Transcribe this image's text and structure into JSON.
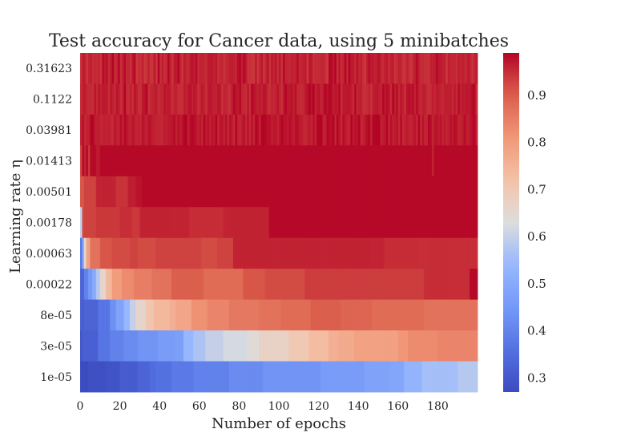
{
  "chart_data": {
    "type": "heatmap",
    "title": "Test accuracy for Cancer data, using 5 minibatches",
    "xlabel": "Number of epochs",
    "ylabel": "Learning rate η",
    "x_ticks": [
      "0",
      "20",
      "40",
      "60",
      "80",
      "100",
      "120",
      "140",
      "160",
      "180"
    ],
    "y_ticks": [
      "0.31623",
      "0.1122",
      "0.03981",
      "0.01413",
      "0.00501",
      "0.00178",
      "0.00063",
      "0.00022",
      "8e-05",
      "3e-05",
      "1e-05"
    ],
    "n_epochs": 200,
    "colormap": "coolwarm",
    "colorbar": {
      "ticks": [
        "0.3",
        "0.4",
        "0.5",
        "0.6",
        "0.7",
        "0.8",
        "0.9"
      ],
      "vmin": 0.27,
      "vmax": 0.99,
      "low_color": "#3b4cc0",
      "mid_color": "#dddddd",
      "high_color": "#b40426"
    },
    "rows": [
      {
        "learning_rate": "0.31623",
        "pattern": "noisy",
        "base": 0.955,
        "spread": 0.035,
        "seed": 11
      },
      {
        "learning_rate": "0.1122",
        "pattern": "noisy",
        "base": 0.962,
        "spread": 0.03,
        "seed": 23
      },
      {
        "learning_rate": "0.03981",
        "pattern": "noisy",
        "base": 0.968,
        "spread": 0.028,
        "seed": 37
      },
      {
        "learning_rate": "0.01413",
        "segments": [
          [
            0,
            0.93
          ],
          [
            1,
            0.985
          ],
          [
            2,
            0.96
          ],
          [
            3,
            0.985
          ],
          [
            4,
            0.94
          ],
          [
            5,
            0.985
          ],
          [
            8,
            0.97
          ],
          [
            10,
            0.985
          ],
          [
            177,
            0.96
          ],
          [
            178,
            0.985
          ]
        ]
      },
      {
        "learning_rate": "0.00501",
        "segments": [
          [
            0,
            0.91
          ],
          [
            2,
            0.93
          ],
          [
            8,
            0.96
          ],
          [
            18,
            0.945
          ],
          [
            24,
            0.965
          ],
          [
            28,
            0.975
          ],
          [
            31,
            0.985
          ]
        ]
      },
      {
        "learning_rate": "0.00178",
        "segments": [
          [
            0,
            0.6
          ],
          [
            1,
            0.92
          ],
          [
            2,
            0.93
          ],
          [
            8,
            0.94
          ],
          [
            20,
            0.95
          ],
          [
            26,
            0.94
          ],
          [
            30,
            0.96
          ],
          [
            55,
            0.95
          ],
          [
            72,
            0.96
          ],
          [
            95,
            0.985
          ]
        ]
      },
      {
        "learning_rate": "0.00063",
        "segments": [
          [
            0,
            0.38
          ],
          [
            1,
            0.5
          ],
          [
            2,
            0.65
          ],
          [
            3,
            0.79
          ],
          [
            5,
            0.87
          ],
          [
            10,
            0.91
          ],
          [
            16,
            0.92
          ],
          [
            25,
            0.93
          ],
          [
            29,
            0.92
          ],
          [
            38,
            0.93
          ],
          [
            61,
            0.92
          ],
          [
            69,
            0.93
          ],
          [
            77,
            0.96
          ],
          [
            153,
            0.95
          ]
        ]
      },
      {
        "learning_rate": "0.00022",
        "segments": [
          [
            0,
            0.33
          ],
          [
            2,
            0.4
          ],
          [
            4,
            0.45
          ],
          [
            6,
            0.5
          ],
          [
            8,
            0.58
          ],
          [
            10,
            0.66
          ],
          [
            13,
            0.74
          ],
          [
            16,
            0.8
          ],
          [
            21,
            0.83
          ],
          [
            27,
            0.85
          ],
          [
            36,
            0.87
          ],
          [
            46,
            0.9
          ],
          [
            62,
            0.88
          ],
          [
            82,
            0.91
          ],
          [
            93,
            0.92
          ],
          [
            113,
            0.935
          ],
          [
            173,
            0.95
          ],
          [
            196,
            0.985
          ]
        ]
      },
      {
        "learning_rate": "8e-05",
        "segments": [
          [
            0,
            0.32
          ],
          [
            2,
            0.33
          ],
          [
            9,
            0.37
          ],
          [
            15,
            0.43
          ],
          [
            18,
            0.48
          ],
          [
            22,
            0.54
          ],
          [
            25,
            0.6
          ],
          [
            28,
            0.66
          ],
          [
            33,
            0.71
          ],
          [
            37,
            0.74
          ],
          [
            45,
            0.76
          ],
          [
            48,
            0.78
          ],
          [
            56,
            0.82
          ],
          [
            64,
            0.84
          ],
          [
            75,
            0.86
          ],
          [
            90,
            0.87
          ],
          [
            101,
            0.88
          ],
          [
            116,
            0.9
          ],
          [
            131,
            0.89
          ],
          [
            147,
            0.88
          ],
          [
            173,
            0.87
          ]
        ]
      },
      {
        "learning_rate": "3e-05",
        "segments": [
          [
            0,
            0.29
          ],
          [
            1,
            0.32
          ],
          [
            9,
            0.37
          ],
          [
            15,
            0.4
          ],
          [
            22,
            0.42
          ],
          [
            29,
            0.44
          ],
          [
            39,
            0.46
          ],
          [
            48,
            0.47
          ],
          [
            52,
            0.54
          ],
          [
            57,
            0.57
          ],
          [
            63,
            0.6
          ],
          [
            72,
            0.62
          ],
          [
            84,
            0.64
          ],
          [
            90,
            0.67
          ],
          [
            105,
            0.7
          ],
          [
            115,
            0.73
          ],
          [
            125,
            0.76
          ],
          [
            130,
            0.77
          ],
          [
            138,
            0.79
          ],
          [
            160,
            0.81
          ],
          [
            165,
            0.83
          ],
          [
            180,
            0.84
          ]
        ]
      },
      {
        "learning_rate": "1e-05",
        "segments": [
          [
            0,
            0.27
          ],
          [
            4,
            0.28
          ],
          [
            13,
            0.29
          ],
          [
            20,
            0.31
          ],
          [
            29,
            0.33
          ],
          [
            35,
            0.35
          ],
          [
            38,
            0.36
          ],
          [
            46,
            0.38
          ],
          [
            57,
            0.4
          ],
          [
            75,
            0.42
          ],
          [
            92,
            0.44
          ],
          [
            121,
            0.46
          ],
          [
            143,
            0.48
          ],
          [
            156,
            0.49
          ],
          [
            163,
            0.53
          ],
          [
            172,
            0.56
          ],
          [
            190,
            0.58
          ]
        ]
      }
    ]
  }
}
